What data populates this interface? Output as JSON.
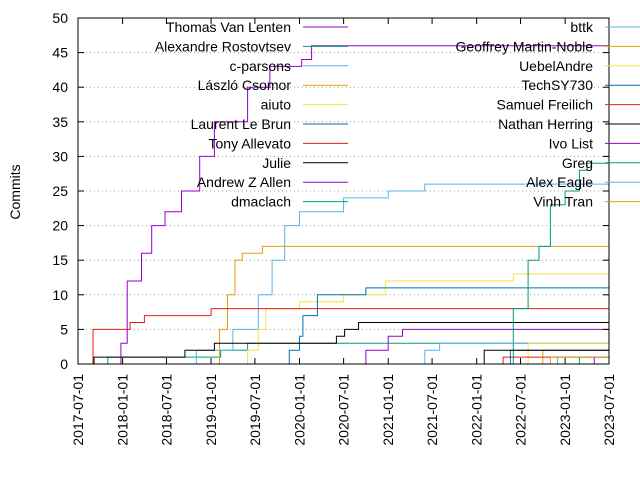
{
  "chart_data": {
    "type": "line",
    "title": "",
    "xlabel": "",
    "ylabel": "Commits",
    "xlim": [
      "2017-07-01",
      "2023-07-01"
    ],
    "ylim": [
      0,
      50
    ],
    "x_ticks": [
      "2017-07-01",
      "2018-01-01",
      "2018-07-01",
      "2019-01-01",
      "2019-07-01",
      "2020-01-01",
      "2020-07-01",
      "2021-01-01",
      "2021-07-01",
      "2022-01-01",
      "2022-07-01",
      "2023-01-01",
      "2023-07-01"
    ],
    "y_ticks": [
      0,
      5,
      10,
      15,
      20,
      25,
      30,
      35,
      40,
      45,
      50
    ],
    "grid": true,
    "legend_placement": "top, two columns",
    "step": true,
    "series": [
      {
        "name": "Thomas Van Lenten",
        "color": "#9400d3",
        "points": [
          [
            "2017-12-05",
            0
          ],
          [
            "2017-12-25",
            3
          ],
          [
            "2018-01-20",
            12
          ],
          [
            "2018-03-20",
            16
          ],
          [
            "2018-05-01",
            20
          ],
          [
            "2018-06-25",
            22
          ],
          [
            "2018-09-01",
            25
          ],
          [
            "2018-11-15",
            30
          ],
          [
            "2019-01-15",
            35
          ],
          [
            "2019-06-01",
            40
          ],
          [
            "2019-09-01",
            43
          ],
          [
            "2020-01-10",
            44
          ],
          [
            "2020-02-20",
            46
          ],
          [
            "2023-07-01",
            46
          ]
        ]
      },
      {
        "name": "Alexandre Rostovtsev",
        "color": "#009e73",
        "points": [
          [
            "2017-10-15",
            0
          ],
          [
            "2017-11-01",
            1
          ],
          [
            "2019-02-10",
            2
          ],
          [
            "2019-06-01",
            3
          ],
          [
            "2023-07-01",
            3
          ]
        ]
      },
      {
        "name": "c-parsons",
        "color": "#56b4e9",
        "points": [
          [
            "2018-10-01",
            0
          ],
          [
            "2018-11-01",
            2
          ],
          [
            "2019-04-01",
            5
          ],
          [
            "2019-07-15",
            10
          ],
          [
            "2019-09-10",
            15
          ],
          [
            "2019-11-01",
            20
          ],
          [
            "2020-01-01",
            22
          ],
          [
            "2020-07-01",
            24
          ],
          [
            "2021-01-01",
            25
          ],
          [
            "2021-06-01",
            26
          ],
          [
            "2023-07-01",
            26
          ]
        ]
      },
      {
        "name": "László Csomor",
        "color": "#e69f00",
        "points": [
          [
            "2019-01-15",
            0
          ],
          [
            "2019-02-05",
            5
          ],
          [
            "2019-03-10",
            10
          ],
          [
            "2019-04-10",
            15
          ],
          [
            "2019-05-10",
            16
          ],
          [
            "2019-08-01",
            17
          ],
          [
            "2023-07-01",
            17
          ]
        ]
      },
      {
        "name": "aiuto",
        "color": "#f0e442",
        "points": [
          [
            "2019-05-01",
            0
          ],
          [
            "2019-06-01",
            2
          ],
          [
            "2019-07-15",
            5
          ],
          [
            "2019-08-15",
            8
          ],
          [
            "2020-01-01",
            9
          ],
          [
            "2020-07-01",
            10
          ],
          [
            "2020-12-20",
            12
          ],
          [
            "2022-06-01",
            13
          ],
          [
            "2023-07-01",
            13
          ]
        ]
      },
      {
        "name": "Laurent Le Brun",
        "color": "#0072b2",
        "points": [
          [
            "2019-09-01",
            0
          ],
          [
            "2019-11-20",
            2
          ],
          [
            "2020-01-01",
            4
          ],
          [
            "2020-01-15",
            7
          ],
          [
            "2020-03-15",
            10
          ],
          [
            "2020-10-01",
            11
          ],
          [
            "2023-07-01",
            11
          ]
        ]
      },
      {
        "name": "Tony Allevato",
        "color": "#e51e10",
        "points": [
          [
            "2017-08-01",
            0
          ],
          [
            "2017-09-01",
            5
          ],
          [
            "2018-02-01",
            6
          ],
          [
            "2018-04-01",
            7
          ],
          [
            "2019-01-01",
            8
          ],
          [
            "2023-07-01",
            8
          ]
        ]
      },
      {
        "name": "Julie",
        "color": "#000000",
        "points": [
          [
            "2017-08-20",
            0
          ],
          [
            "2017-09-05",
            1
          ],
          [
            "2018-03-01",
            1
          ],
          [
            "2018-09-15",
            2
          ],
          [
            "2019-01-15",
            3
          ],
          [
            "2020-06-01",
            4
          ],
          [
            "2020-07-05",
            5
          ],
          [
            "2020-09-01",
            6
          ],
          [
            "2023-07-01",
            6
          ]
        ]
      },
      {
        "name": "Andrew Z Allen",
        "color": "#9400d3",
        "points": [
          [
            "2020-08-01",
            0
          ],
          [
            "2020-10-01",
            2
          ],
          [
            "2021-01-01",
            4
          ],
          [
            "2021-03-01",
            5
          ],
          [
            "2023-07-01",
            5
          ]
        ]
      },
      {
        "name": "dmaclach",
        "color": "#009e73",
        "points": [
          [
            "2022-03-01",
            0
          ],
          [
            "2022-06-01",
            8
          ],
          [
            "2022-08-01",
            15
          ],
          [
            "2022-09-15",
            17
          ],
          [
            "2022-11-01",
            23
          ],
          [
            "2023-01-01",
            25
          ],
          [
            "2023-03-01",
            28
          ],
          [
            "2023-04-01",
            29
          ],
          [
            "2023-07-01",
            29
          ]
        ]
      },
      {
        "name": "bttk",
        "color": "#56b4e9",
        "points": [
          [
            "2021-04-01",
            0
          ],
          [
            "2021-06-01",
            2
          ],
          [
            "2021-08-01",
            3
          ],
          [
            "2023-07-01",
            3
          ]
        ]
      },
      {
        "name": "Geoffrey Martin-Noble",
        "color": "#e69f00",
        "points": [
          [
            "2022-09-01",
            0
          ],
          [
            "2022-10-01",
            2
          ],
          [
            "2023-07-01",
            2
          ]
        ]
      },
      {
        "name": "UebelAndre",
        "color": "#f0e442",
        "points": [
          [
            "2022-07-01",
            0
          ],
          [
            "2022-08-01",
            3
          ],
          [
            "2023-07-01",
            3
          ]
        ]
      },
      {
        "name": "TechSY730",
        "color": "#0072b2",
        "points": [
          [
            "2022-05-01",
            0
          ],
          [
            "2022-05-20",
            2
          ],
          [
            "2023-07-01",
            2
          ]
        ]
      },
      {
        "name": "Samuel Freilich",
        "color": "#e51e10",
        "points": [
          [
            "2022-04-01",
            0
          ],
          [
            "2022-04-20",
            1
          ],
          [
            "2023-07-01",
            1
          ]
        ]
      },
      {
        "name": "Nathan Herring",
        "color": "#000000",
        "points": [
          [
            "2022-01-01",
            0
          ],
          [
            "2022-02-01",
            2
          ],
          [
            "2023-07-01",
            2
          ]
        ]
      },
      {
        "name": "Ivo List",
        "color": "#9400d3",
        "points": [
          [
            "2023-04-01",
            0
          ],
          [
            "2023-05-01",
            1
          ],
          [
            "2023-07-01",
            1
          ]
        ]
      },
      {
        "name": "Greg",
        "color": "#009e73",
        "points": [
          [
            "2023-02-01",
            0
          ],
          [
            "2023-03-01",
            1
          ],
          [
            "2023-07-01",
            1
          ]
        ]
      },
      {
        "name": "Alex Eagle",
        "color": "#56b4e9",
        "points": [
          [
            "2022-11-01",
            0
          ],
          [
            "2022-12-01",
            1
          ],
          [
            "2023-07-01",
            1
          ]
        ]
      },
      {
        "name": "Vinh Tran",
        "color": "#e69f00",
        "points": [
          [
            "2022-10-01",
            0
          ],
          [
            "2022-11-01",
            1
          ],
          [
            "2023-07-01",
            1
          ]
        ]
      }
    ]
  }
}
